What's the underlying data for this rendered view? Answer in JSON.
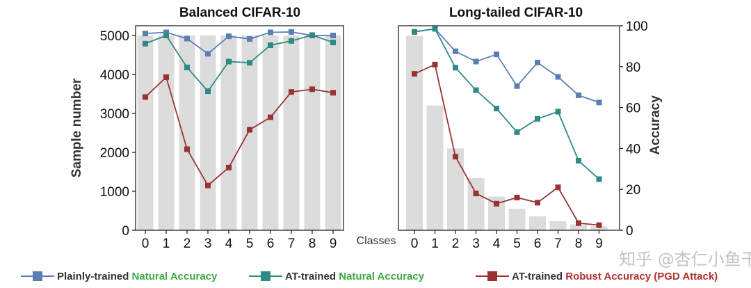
{
  "chart_data": [
    {
      "type": "bar+line",
      "title": "Balanced CIFAR-10",
      "ylabel": "Sample number",
      "xlabel": "",
      "ylim": [
        0,
        5250
      ],
      "yticks": [
        0,
        1000,
        2000,
        3000,
        4000,
        5000
      ],
      "categories": [
        "0",
        "1",
        "2",
        "3",
        "4",
        "5",
        "6",
        "7",
        "8",
        "9"
      ],
      "bars": [
        5000,
        5000,
        5000,
        5000,
        5000,
        5000,
        5000,
        5000,
        5000,
        5000
      ],
      "series": [
        {
          "name": "Plainly-trained Natural Accuracy",
          "color": "#5b7fb5",
          "values": [
            5050,
            5080,
            4920,
            4530,
            4980,
            4910,
            5080,
            5090,
            5000,
            5000
          ]
        },
        {
          "name": "AT-trained Natural Accuracy",
          "color": "#2e8a84",
          "values": [
            4790,
            5000,
            4180,
            3570,
            4330,
            4300,
            4750,
            4860,
            5010,
            4820
          ]
        },
        {
          "name": "AT-trained Robust Accuracy (PGD Attack)",
          "color": "#993333",
          "values": [
            3420,
            3930,
            2080,
            1150,
            1610,
            2580,
            2900,
            3550,
            3620,
            3530
          ]
        }
      ],
      "grid": false
    },
    {
      "type": "bar+line",
      "title": "Long-tailed CIFAR-10",
      "xlabel": "Classes",
      "ylabel": "Accuracy",
      "y_side": "right",
      "ylim": [
        0,
        100
      ],
      "yticks": [
        0,
        20,
        40,
        60,
        80,
        100
      ],
      "categories": [
        "0",
        "1",
        "2",
        "3",
        "4",
        "5",
        "6",
        "7",
        "8",
        "9"
      ],
      "bars": [
        95,
        61,
        40,
        25.5,
        16.5,
        10.5,
        6.8,
        4.4,
        2.8,
        1.9
      ],
      "series": [
        {
          "name": "Plainly-trained Natural Accuracy",
          "color": "#5b7fb5",
          "values": [
            97,
            98.5,
            87.5,
            82.5,
            86,
            70.5,
            82,
            75,
            66,
            62.5
          ]
        },
        {
          "name": "AT-trained Natural Accuracy",
          "color": "#2e8a84",
          "values": [
            97,
            98.5,
            79.5,
            68.5,
            59.5,
            48,
            54.5,
            58,
            34,
            25
          ]
        },
        {
          "name": "AT-trained Robust Accuracy (PGD Attack)",
          "color": "#993333",
          "values": [
            76.5,
            81,
            36,
            18,
            13,
            16,
            13.5,
            21,
            3.5,
            2.5
          ]
        }
      ],
      "grid": false
    }
  ],
  "legend": {
    "placement": "bottom",
    "items": [
      {
        "prefix": "Plainly-trained ",
        "highlight": "Natural Accuracy",
        "line_color": "#5b7fb5",
        "highlight_color": "#3da843"
      },
      {
        "prefix": "AT-trained ",
        "highlight": "Natural Accuracy",
        "line_color": "#2e8a84",
        "highlight_color": "#3da843"
      },
      {
        "prefix": "AT-trained ",
        "highlight": "Robust Accuracy (PGD Attack)",
        "line_color": "#993333",
        "highlight_color": "#b03030"
      }
    ]
  },
  "watermark": "知乎 @杏仁小鱼干",
  "colors": {
    "bar": "#dcdcdc",
    "text": "#111111",
    "legend_prefix": "#333333"
  }
}
